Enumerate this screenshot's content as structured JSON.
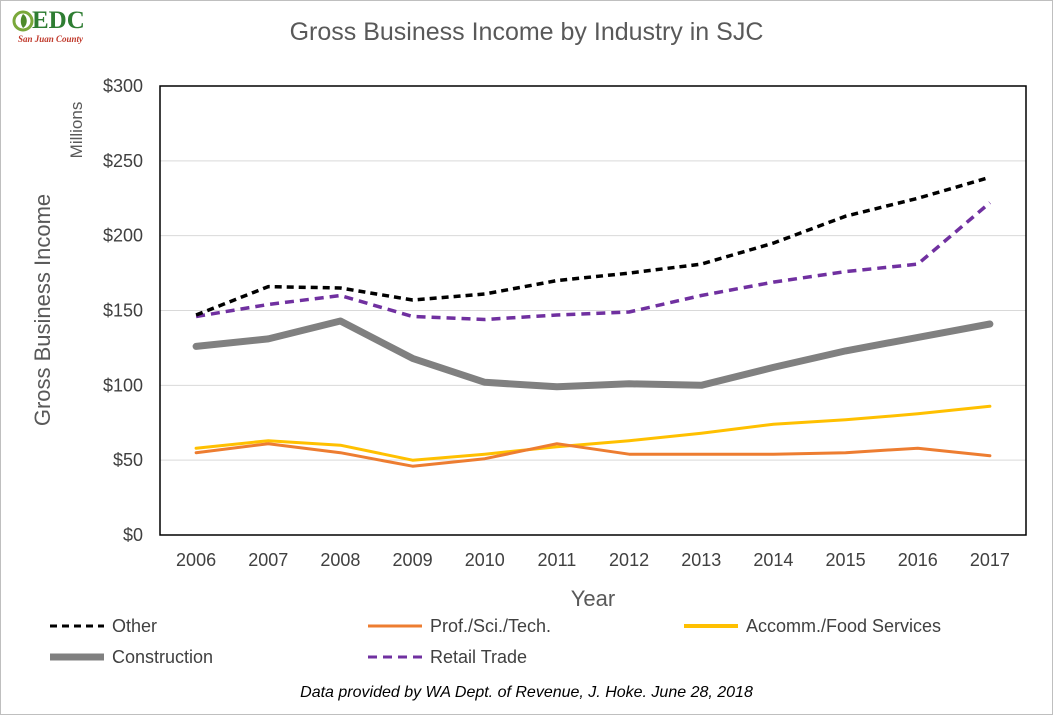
{
  "logo": {
    "text": "EDC",
    "subtitle": "San Juan County"
  },
  "chart_data": {
    "type": "line",
    "title": "Gross Business Income by Industry in SJC",
    "xlabel": "Year",
    "ylabel": "Gross Business Income",
    "units_label": "Millions",
    "x": [
      "2006",
      "2007",
      "2008",
      "2009",
      "2010",
      "2011",
      "2012",
      "2013",
      "2014",
      "2015",
      "2016",
      "2017"
    ],
    "ylim": [
      0,
      300
    ],
    "yticks": [
      0,
      50,
      100,
      150,
      200,
      250,
      300
    ],
    "ytick_labels": [
      "$0",
      "$50",
      "$100",
      "$150",
      "$200",
      "$250",
      "$300"
    ],
    "grid": "horizontal",
    "legend_position": "bottom",
    "series": [
      {
        "name": "Other",
        "color": "#000000",
        "style": "dashed",
        "values": [
          147,
          166,
          165,
          157,
          161,
          170,
          175,
          181,
          195,
          213,
          225,
          239
        ]
      },
      {
        "name": "Prof./Sci./Tech.",
        "color": "#ed7d31",
        "style": "solid",
        "values": [
          55,
          61,
          55,
          46,
          51,
          61,
          54,
          54,
          54,
          55,
          58,
          53
        ]
      },
      {
        "name": "Accomm./Food Services",
        "color": "#ffc000",
        "style": "solid",
        "values": [
          58,
          63,
          60,
          50,
          54,
          59,
          63,
          68,
          74,
          77,
          81,
          86
        ]
      },
      {
        "name": "Construction",
        "color": "#808080",
        "style": "solid-thick",
        "values": [
          126,
          131,
          143,
          118,
          102,
          99,
          101,
          100,
          112,
          123,
          132,
          141
        ]
      },
      {
        "name": "Retail Trade",
        "color": "#7030a0",
        "style": "dashed",
        "values": [
          146,
          154,
          160,
          146,
          144,
          147,
          149,
          160,
          169,
          176,
          181,
          222
        ]
      }
    ]
  },
  "source_note": "Data provided by WA Dept. of Revenue, J. Hoke. June 28, 2018"
}
